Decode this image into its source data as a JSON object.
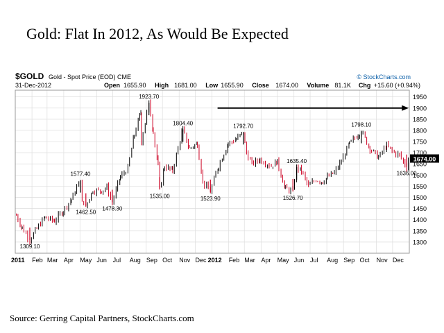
{
  "slide": {
    "title": "Gold: Flat In 2012, As Would Be Expected",
    "source": "Source: Gerring Capital Partners, StockCharts.com"
  },
  "chart_data": {
    "type": "bar",
    "style": "ohlc",
    "symbol": "$GOLD",
    "name": "Gold - Spot Price (EOD)",
    "exchange": "CME",
    "branding": "© StockCharts.com",
    "date": "31-Dec-2012",
    "quote": {
      "open_label": "Open",
      "open": "1655.90",
      "high_label": "High",
      "high": "1681.00",
      "low_label": "Low",
      "low": "1655.90",
      "close_label": "Close",
      "close": "1674.00",
      "volume_label": "Volume",
      "volume": "81.1K",
      "chg_label": "Chg",
      "chg": "+15.60 (+0.94%)"
    },
    "last_price": "1674.00",
    "ylim": [
      1250,
      1980
    ],
    "y_ticks": [
      1300,
      1350,
      1400,
      1450,
      1500,
      1550,
      1600,
      1650,
      1700,
      1750,
      1800,
      1850,
      1900,
      1950
    ],
    "x_ticks": [
      "2011",
      "Feb",
      "Mar",
      "Apr",
      "May",
      "Jun",
      "Jul",
      "Aug",
      "Sep",
      "Oct",
      "Nov",
      "Dec",
      "2012",
      "Feb",
      "Mar",
      "Apr",
      "May",
      "Jun",
      "Jul",
      "Aug",
      "Sep",
      "Oct",
      "Nov",
      "Dec"
    ],
    "x_domain": [
      "2011-01-01",
      "2013-01-01"
    ],
    "grid": true,
    "series": [
      {
        "points": [
          [
            "2011-01-03",
            1420
          ],
          [
            "2011-01-14",
            1365
          ],
          [
            "2011-01-28",
            1309.1
          ],
          [
            "2011-02-10",
            1360
          ],
          [
            "2011-02-25",
            1410
          ],
          [
            "2011-03-15",
            1395
          ],
          [
            "2011-03-31",
            1440
          ],
          [
            "2011-04-15",
            1490
          ],
          [
            "2011-05-02",
            1577.4
          ],
          [
            "2011-05-05",
            1475
          ],
          [
            "2011-05-12",
            1462.5
          ],
          [
            "2011-05-25",
            1530
          ],
          [
            "2011-06-10",
            1530
          ],
          [
            "2011-06-20",
            1545
          ],
          [
            "2011-06-30",
            1478.3
          ],
          [
            "2011-07-15",
            1590
          ],
          [
            "2011-07-29",
            1630
          ],
          [
            "2011-08-10",
            1780
          ],
          [
            "2011-08-22",
            1880
          ],
          [
            "2011-08-23",
            1750
          ],
          [
            "2011-09-06",
            1923.7
          ],
          [
            "2011-09-14",
            1800
          ],
          [
            "2011-09-23",
            1640
          ],
          [
            "2011-09-26",
            1535
          ],
          [
            "2011-10-05",
            1640
          ],
          [
            "2011-10-20",
            1620
          ],
          [
            "2011-11-08",
            1804.4
          ],
          [
            "2011-11-20",
            1720
          ],
          [
            "2011-12-05",
            1740
          ],
          [
            "2011-12-15",
            1570
          ],
          [
            "2011-12-29",
            1523.9
          ],
          [
            "2012-01-13",
            1640
          ],
          [
            "2012-01-31",
            1740
          ],
          [
            "2012-02-15",
            1760
          ],
          [
            "2012-02-28",
            1792.7
          ],
          [
            "2012-03-05",
            1700
          ],
          [
            "2012-03-15",
            1650
          ],
          [
            "2012-03-30",
            1670
          ],
          [
            "2012-04-20",
            1640
          ],
          [
            "2012-05-01",
            1660
          ],
          [
            "2012-05-16",
            1540
          ],
          [
            "2012-05-30",
            1526.7
          ],
          [
            "2012-06-06",
            1635.4
          ],
          [
            "2012-06-15",
            1620
          ],
          [
            "2012-06-28",
            1550
          ],
          [
            "2012-07-12",
            1580
          ],
          [
            "2012-07-24",
            1570
          ],
          [
            "2012-08-02",
            1590
          ],
          [
            "2012-08-15",
            1610
          ],
          [
            "2012-08-28",
            1660
          ],
          [
            "2012-09-12",
            1740
          ],
          [
            "2012-09-28",
            1780
          ],
          [
            "2012-10-04",
            1798.1
          ],
          [
            "2012-10-20",
            1720
          ],
          [
            "2012-11-05",
            1680
          ],
          [
            "2012-11-20",
            1730
          ],
          [
            "2012-12-04",
            1700
          ],
          [
            "2012-12-14",
            1690
          ],
          [
            "2012-12-27",
            1636
          ],
          [
            "2012-12-31",
            1674
          ]
        ]
      }
    ],
    "annotations": [
      {
        "text": "1309.10",
        "date": "2011-01-28",
        "value": 1309.1,
        "position": "below"
      },
      {
        "text": "1577.40",
        "date": "2011-05-02",
        "value": 1577.4,
        "position": "above"
      },
      {
        "text": "1462.50",
        "date": "2011-05-12",
        "value": 1462.5,
        "position": "below"
      },
      {
        "text": "1478.30",
        "date": "2011-06-30",
        "value": 1478.3,
        "position": "below"
      },
      {
        "text": "1923.70",
        "date": "2011-09-06",
        "value": 1923.7,
        "position": "above"
      },
      {
        "text": "1535.00",
        "date": "2011-09-26",
        "value": 1535,
        "position": "below"
      },
      {
        "text": "1804.40",
        "date": "2011-11-08",
        "value": 1804.4,
        "position": "above"
      },
      {
        "text": "1523.90",
        "date": "2011-12-29",
        "value": 1523.9,
        "position": "below"
      },
      {
        "text": "1792.70",
        "date": "2012-02-28",
        "value": 1792.7,
        "position": "above"
      },
      {
        "text": "1635.40",
        "date": "2012-06-06",
        "value": 1635.4,
        "position": "above"
      },
      {
        "text": "1526.70",
        "date": "2012-05-30",
        "value": 1526.7,
        "position": "below"
      },
      {
        "text": "1798.10",
        "date": "2012-10-04",
        "value": 1798.1,
        "position": "above"
      },
      {
        "text": "1636.00",
        "date": "2012-12-27",
        "value": 1636,
        "position": "below"
      }
    ],
    "arrow": {
      "from_date": "2012-01-01",
      "to_date": "2012-12-31",
      "value": 1900
    },
    "colors": {
      "up": "#000000",
      "down": "#cc0022",
      "grid": "#dddddd",
      "frame": "#999999",
      "arrow": "#000000",
      "brand": "#0b5fa8",
      "last_price_bg": "#000000",
      "last_price_fg": "#ffffff"
    }
  }
}
